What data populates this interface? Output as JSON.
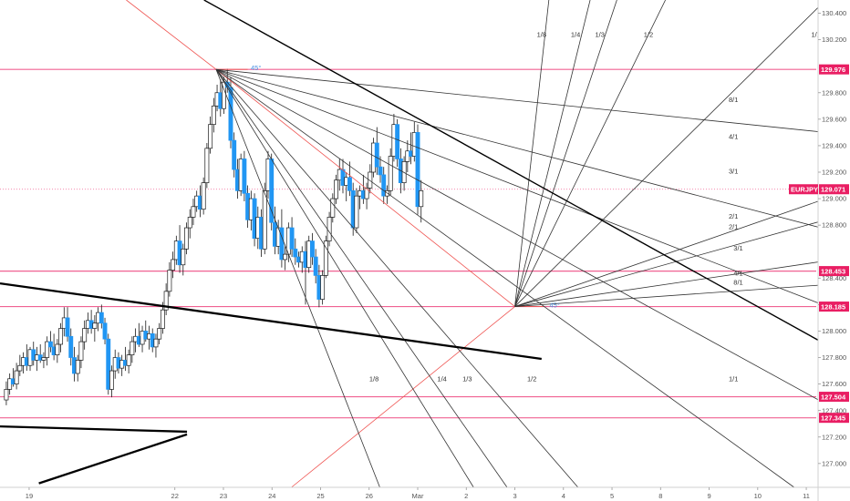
{
  "chart_data": {
    "type": "candlestick",
    "symbol": "EURJPY",
    "last_price": "129.071",
    "colors": {
      "bull": "#ffffff",
      "bear": "#2196f3",
      "wick": "#1a1a1a",
      "hline": "#f06292",
      "price_tag": "#e91e63",
      "fan": "#333333",
      "trendline": "#000000",
      "angle_line": "#ef5350",
      "background": "#ffffff",
      "axis_text": "#555555"
    },
    "y_axis": {
      "range": [
        126.82,
        130.5
      ],
      "ticks": [
        "130.400",
        "130.200",
        "129.800",
        "129.600",
        "129.400",
        "129.200",
        "129.000",
        "128.800",
        "128.400",
        "128.200",
        "128.000",
        "127.800",
        "127.600",
        "127.400",
        "127.200",
        "127.000"
      ]
    },
    "x_axis": {
      "range": [
        18.4,
        11.9
      ],
      "ticks": [
        {
          "label": "19",
          "pos": 19
        },
        {
          "label": "22",
          "pos": 22
        },
        {
          "label": "23",
          "pos": 23
        },
        {
          "label": "24",
          "pos": 24
        },
        {
          "label": "25",
          "pos": 25
        },
        {
          "label": "26",
          "pos": 26
        },
        {
          "label": "Mar",
          "pos": 27
        },
        {
          "label": "2",
          "pos": 28
        },
        {
          "label": "3",
          "pos": 29
        },
        {
          "label": "4",
          "pos": 30
        },
        {
          "label": "5",
          "pos": 31
        },
        {
          "label": "8",
          "pos": 32
        },
        {
          "label": "9",
          "pos": 33
        },
        {
          "label": "10",
          "pos": 34
        },
        {
          "label": "11",
          "pos": 35
        }
      ]
    },
    "price_levels": [
      {
        "label": "129.976",
        "value": 129.976
      },
      {
        "label": "128.453",
        "value": 128.453
      },
      {
        "label": "128.185",
        "value": 128.185
      },
      {
        "label": "127.504",
        "value": 127.504
      },
      {
        "label": "127.345",
        "value": 127.345
      }
    ],
    "candles": [
      [
        18.53,
        127.48,
        127.62,
        127.44,
        127.56
      ],
      [
        18.6,
        127.56,
        127.68,
        127.52,
        127.64
      ],
      [
        18.67,
        127.64,
        127.72,
        127.58,
        127.6
      ],
      [
        18.74,
        127.6,
        127.76,
        127.56,
        127.7
      ],
      [
        18.81,
        127.7,
        127.82,
        127.66,
        127.74
      ],
      [
        18.88,
        127.74,
        127.84,
        127.68,
        127.8
      ],
      [
        18.95,
        127.8,
        127.9,
        127.7,
        127.74
      ],
      [
        19.02,
        127.74,
        127.88,
        127.7,
        127.86
      ],
      [
        19.09,
        127.86,
        127.92,
        127.74,
        127.78
      ],
      [
        19.16,
        127.78,
        127.88,
        127.7,
        127.82
      ],
      [
        19.23,
        127.82,
        127.9,
        127.76,
        127.78
      ],
      [
        19.3,
        127.78,
        127.84,
        127.72,
        127.8
      ],
      [
        19.37,
        127.8,
        127.96,
        127.74,
        127.92
      ],
      [
        19.44,
        127.92,
        128.0,
        127.84,
        127.88
      ],
      [
        19.51,
        127.88,
        127.98,
        127.78,
        127.82
      ],
      [
        19.58,
        127.82,
        127.94,
        127.76,
        127.9
      ],
      [
        19.65,
        127.9,
        128.06,
        127.84,
        128.02
      ],
      [
        19.72,
        128.02,
        128.18,
        127.96,
        128.1
      ],
      [
        19.79,
        128.1,
        128.18,
        127.92,
        127.96
      ],
      [
        19.86,
        127.96,
        128.02,
        127.74,
        127.8
      ],
      [
        19.93,
        127.8,
        127.88,
        127.62,
        127.68
      ],
      [
        20.0,
        127.68,
        127.82,
        127.62,
        127.78
      ],
      [
        20.07,
        127.78,
        127.96,
        127.72,
        127.92
      ],
      [
        20.14,
        127.92,
        128.08,
        127.86,
        128.02
      ],
      [
        20.21,
        128.02,
        128.14,
        127.98,
        128.08
      ],
      [
        20.28,
        128.08,
        128.16,
        127.98,
        128.02
      ],
      [
        20.35,
        128.02,
        128.12,
        127.92,
        128.06
      ],
      [
        20.42,
        128.06,
        128.18,
        128.0,
        128.14
      ],
      [
        20.49,
        128.14,
        128.2,
        128.02,
        128.06
      ],
      [
        20.56,
        128.06,
        128.1,
        127.9,
        127.94
      ],
      [
        20.63,
        127.94,
        127.98,
        127.52,
        127.56
      ],
      [
        20.7,
        127.56,
        127.74,
        127.5,
        127.7
      ],
      [
        20.77,
        127.7,
        127.86,
        127.64,
        127.8
      ],
      [
        20.84,
        127.8,
        127.84,
        127.68,
        127.72
      ],
      [
        20.91,
        127.72,
        127.82,
        127.66,
        127.78
      ],
      [
        20.98,
        127.78,
        127.88,
        127.7,
        127.74
      ],
      [
        21.05,
        127.74,
        127.86,
        127.68,
        127.82
      ],
      [
        21.12,
        127.82,
        127.96,
        127.76,
        127.92
      ],
      [
        21.19,
        127.92,
        128.02,
        127.84,
        127.96
      ],
      [
        21.26,
        127.96,
        128.06,
        127.88,
        127.9
      ],
      [
        21.33,
        127.9,
        128.04,
        127.84,
        128.0
      ],
      [
        21.4,
        128.0,
        128.08,
        127.92,
        127.94
      ],
      [
        21.47,
        127.94,
        128.04,
        127.86,
        127.98
      ],
      [
        21.54,
        127.98,
        128.02,
        127.84,
        127.88
      ],
      [
        21.61,
        127.88,
        127.98,
        127.8,
        127.94
      ],
      [
        21.68,
        127.94,
        128.06,
        127.9,
        128.02
      ],
      [
        21.75,
        128.02,
        128.22,
        127.98,
        128.16
      ],
      [
        21.82,
        128.16,
        128.36,
        128.12,
        128.3
      ],
      [
        21.89,
        128.3,
        128.52,
        128.26,
        128.46
      ],
      [
        21.96,
        128.46,
        128.6,
        128.4,
        128.54
      ],
      [
        22.03,
        128.54,
        128.72,
        128.5,
        128.68
      ],
      [
        22.1,
        128.68,
        128.8,
        128.44,
        128.5
      ],
      [
        22.17,
        128.5,
        128.66,
        128.42,
        128.62
      ],
      [
        22.24,
        128.62,
        128.82,
        128.58,
        128.78
      ],
      [
        22.31,
        128.78,
        128.92,
        128.7,
        128.86
      ],
      [
        22.38,
        128.86,
        129.0,
        128.8,
        128.94
      ],
      [
        22.45,
        128.94,
        129.06,
        128.9,
        129.02
      ],
      [
        22.52,
        129.02,
        129.1,
        128.86,
        128.92
      ],
      [
        22.59,
        128.92,
        129.16,
        128.88,
        129.12
      ],
      [
        22.66,
        129.12,
        129.42,
        129.08,
        129.38
      ],
      [
        22.73,
        129.38,
        129.62,
        129.34,
        129.56
      ],
      [
        22.8,
        129.56,
        129.76,
        129.5,
        129.7
      ],
      [
        22.87,
        129.7,
        129.86,
        129.66,
        129.8
      ],
      [
        22.94,
        129.8,
        129.9,
        129.62,
        129.68
      ],
      [
        23.01,
        129.68,
        129.92,
        129.64,
        129.88
      ],
      [
        23.08,
        129.88,
        129.98,
        129.8,
        129.84
      ],
      [
        23.15,
        129.84,
        129.92,
        129.38,
        129.44
      ],
      [
        23.22,
        129.44,
        129.5,
        129.16,
        129.22
      ],
      [
        23.29,
        129.22,
        129.3,
        129.0,
        129.06
      ],
      [
        23.36,
        129.06,
        129.34,
        129.02,
        129.3
      ],
      [
        23.43,
        129.3,
        129.36,
        128.98,
        129.04
      ],
      [
        23.5,
        129.04,
        129.1,
        128.78,
        128.84
      ],
      [
        23.57,
        128.84,
        129.06,
        128.76,
        129.0
      ],
      [
        23.64,
        129.0,
        129.04,
        128.64,
        128.7
      ],
      [
        23.71,
        128.7,
        128.94,
        128.62,
        128.86
      ],
      [
        23.78,
        128.86,
        128.92,
        128.56,
        128.62
      ],
      [
        23.85,
        128.62,
        129.12,
        128.58,
        129.06
      ],
      [
        23.92,
        129.06,
        129.36,
        129.0,
        129.3
      ],
      [
        23.99,
        129.3,
        129.34,
        128.76,
        128.82
      ],
      [
        24.06,
        128.82,
        128.94,
        128.58,
        128.64
      ],
      [
        24.13,
        128.64,
        128.84,
        128.58,
        128.78
      ],
      [
        24.2,
        128.78,
        128.92,
        128.48,
        128.54
      ],
      [
        24.27,
        128.54,
        128.64,
        128.46,
        128.58
      ],
      [
        24.34,
        128.58,
        128.82,
        128.52,
        128.78
      ],
      [
        24.41,
        128.78,
        128.86,
        128.56,
        128.62
      ],
      [
        24.48,
        128.62,
        128.7,
        128.5,
        128.56
      ],
      [
        24.55,
        128.56,
        128.6,
        128.48,
        128.52
      ],
      [
        24.62,
        128.52,
        128.64,
        128.44,
        128.6
      ],
      [
        24.69,
        128.6,
        128.68,
        128.2,
        128.48
      ],
      [
        24.76,
        128.48,
        128.72,
        128.44,
        128.68
      ],
      [
        24.83,
        128.68,
        128.74,
        128.5,
        128.56
      ],
      [
        24.9,
        128.56,
        128.62,
        128.36,
        128.42
      ],
      [
        24.97,
        128.42,
        128.5,
        128.18,
        128.24
      ],
      [
        25.04,
        128.24,
        128.46,
        128.2,
        128.42
      ],
      [
        25.11,
        128.42,
        128.72,
        128.4,
        128.68
      ],
      [
        25.18,
        128.68,
        128.9,
        128.64,
        128.86
      ],
      [
        25.25,
        128.86,
        129.04,
        128.82,
        129.0
      ],
      [
        25.32,
        129.0,
        129.18,
        128.96,
        129.14
      ],
      [
        25.39,
        129.14,
        129.3,
        129.06,
        129.22
      ],
      [
        25.46,
        129.22,
        129.3,
        129.04,
        129.1
      ],
      [
        25.53,
        129.1,
        129.2,
        128.98,
        129.16
      ],
      [
        25.6,
        129.16,
        129.28,
        129.02,
        129.06
      ],
      [
        25.67,
        129.06,
        129.12,
        128.72,
        128.78
      ],
      [
        25.74,
        128.78,
        129.08,
        128.74,
        129.02
      ],
      [
        25.81,
        129.02,
        129.1,
        128.92,
        129.06
      ],
      [
        25.88,
        129.06,
        129.18,
        128.96,
        129.0
      ],
      [
        25.95,
        129.0,
        129.12,
        128.92,
        129.08
      ],
      [
        26.02,
        129.08,
        129.26,
        129.04,
        129.2
      ],
      [
        26.09,
        129.2,
        129.46,
        129.16,
        129.42
      ],
      [
        26.16,
        129.42,
        129.54,
        129.18,
        129.24
      ],
      [
        26.23,
        129.24,
        129.32,
        129.12,
        129.18
      ],
      [
        26.3,
        129.18,
        129.24,
        128.96,
        129.02
      ],
      [
        26.37,
        129.02,
        129.1,
        128.96,
        129.06
      ],
      [
        26.44,
        129.06,
        129.38,
        129.02,
        129.32
      ],
      [
        26.51,
        129.32,
        129.64,
        129.28,
        129.56
      ],
      [
        26.58,
        129.56,
        129.6,
        129.24,
        129.3
      ],
      [
        26.65,
        129.3,
        129.38,
        129.04,
        129.12
      ],
      [
        26.72,
        129.12,
        129.32,
        129.06,
        129.28
      ],
      [
        26.79,
        129.28,
        129.44,
        129.2,
        129.36
      ],
      [
        26.86,
        129.36,
        129.5,
        129.26,
        129.32
      ],
      [
        26.93,
        129.32,
        129.58,
        129.28,
        129.5
      ],
      [
        27.0,
        129.5,
        129.56,
        128.88,
        128.94
      ],
      [
        27.07,
        128.94,
        129.14,
        128.82,
        129.06
      ]
    ],
    "fans": [
      {
        "origin": [
          22.85,
          129.976
        ],
        "origin_label": "45°",
        "rays": [
          {
            "label": "8/1",
            "to": [
              35.4,
              129.5
            ],
            "label_at": [
              33.5,
              129.73
            ]
          },
          {
            "label": "4/1",
            "to": [
              35.4,
              128.77
            ],
            "label_at": [
              33.5,
              129.45
            ]
          },
          {
            "label": "3/1",
            "to": [
              35.4,
              128.19
            ],
            "label_at": [
              33.5,
              129.19
            ]
          },
          {
            "label": "2/1",
            "to": [
              35.4,
              127.45
            ],
            "label_at": [
              33.5,
              128.85
            ]
          },
          {
            "label": "1/1",
            "to": [
              34.75,
              126.82
            ],
            "label_at": [
              33.5,
              127.62
            ]
          },
          {
            "label": "1/2",
            "to": [
              30.3,
              126.82
            ],
            "label_at": [
              29.35,
              127.62
            ]
          },
          {
            "label": "1/3",
            "to": [
              28.84,
              126.82
            ],
            "label_at": [
              28.02,
              127.62
            ]
          },
          {
            "label": "1/4",
            "to": [
              28.15,
              126.82
            ],
            "label_at": [
              27.5,
              127.62
            ]
          },
          {
            "label": "1/8",
            "to": [
              26.22,
              126.82
            ],
            "label_at": [
              26.1,
              127.62
            ]
          }
        ]
      },
      {
        "origin": [
          29.0,
          128.185
        ],
        "origin_label": "45°",
        "rays": [
          {
            "label": "1/1",
            "to": [
              35.4,
              130.5
            ],
            "label_at": [
              35.2,
              130.22
            ]
          },
          {
            "label": "1/2",
            "to": [
              32.1,
              130.5
            ],
            "label_at": [
              31.75,
              130.22
            ]
          },
          {
            "label": "1/3",
            "to": [
              31.1,
              130.5
            ],
            "label_at": [
              30.75,
              130.22
            ]
          },
          {
            "label": "1/4",
            "to": [
              30.55,
              130.5
            ],
            "label_at": [
              30.25,
              130.22
            ]
          },
          {
            "label": "1/8",
            "to": [
              29.7,
              130.5
            ],
            "label_at": [
              29.55,
              130.22
            ]
          },
          {
            "label": "2/1",
            "to": [
              35.4,
              129.0
            ],
            "label_at": [
              33.5,
              128.77
            ]
          },
          {
            "label": "3/1",
            "to": [
              35.4,
              128.84
            ],
            "label_at": [
              33.6,
              128.61
            ]
          },
          {
            "label": "4/1",
            "to": [
              35.4,
              128.53
            ],
            "label_at": [
              33.6,
              128.42
            ]
          },
          {
            "label": "8/1",
            "to": [
              35.4,
              128.35
            ],
            "label_at": [
              33.6,
              128.35
            ]
          }
        ]
      }
    ],
    "trendlines": [
      {
        "from": [
          18.4,
          128.36
        ],
        "to": [
          29.55,
          127.79
        ],
        "width": 2.3
      },
      {
        "from": [
          18.4,
          127.28
        ],
        "to": [
          22.25,
          127.24
        ],
        "width": 2.3
      },
      {
        "from": [
          19.2,
          126.85
        ],
        "to": [
          22.25,
          127.22
        ],
        "width": 2.3
      },
      {
        "from": [
          22.6,
          130.5
        ],
        "to": [
          35.4,
          127.9
        ],
        "width": 1.4
      }
    ],
    "angle_lines": [
      {
        "from": [
          21.0,
          130.5
        ],
        "to": [
          22.85,
          129.976
        ]
      },
      {
        "from": [
          22.85,
          129.976
        ],
        "to": [
          29.0,
          128.185
        ]
      },
      {
        "from": [
          24.4,
          126.82
        ],
        "to": [
          29.0,
          128.185
        ]
      },
      {
        "from": [
          22.85,
          129.976
        ],
        "to": [
          23.5,
          129.976
        ]
      },
      {
        "from": [
          29.0,
          128.185
        ],
        "to": [
          29.6,
          128.185
        ]
      }
    ]
  }
}
